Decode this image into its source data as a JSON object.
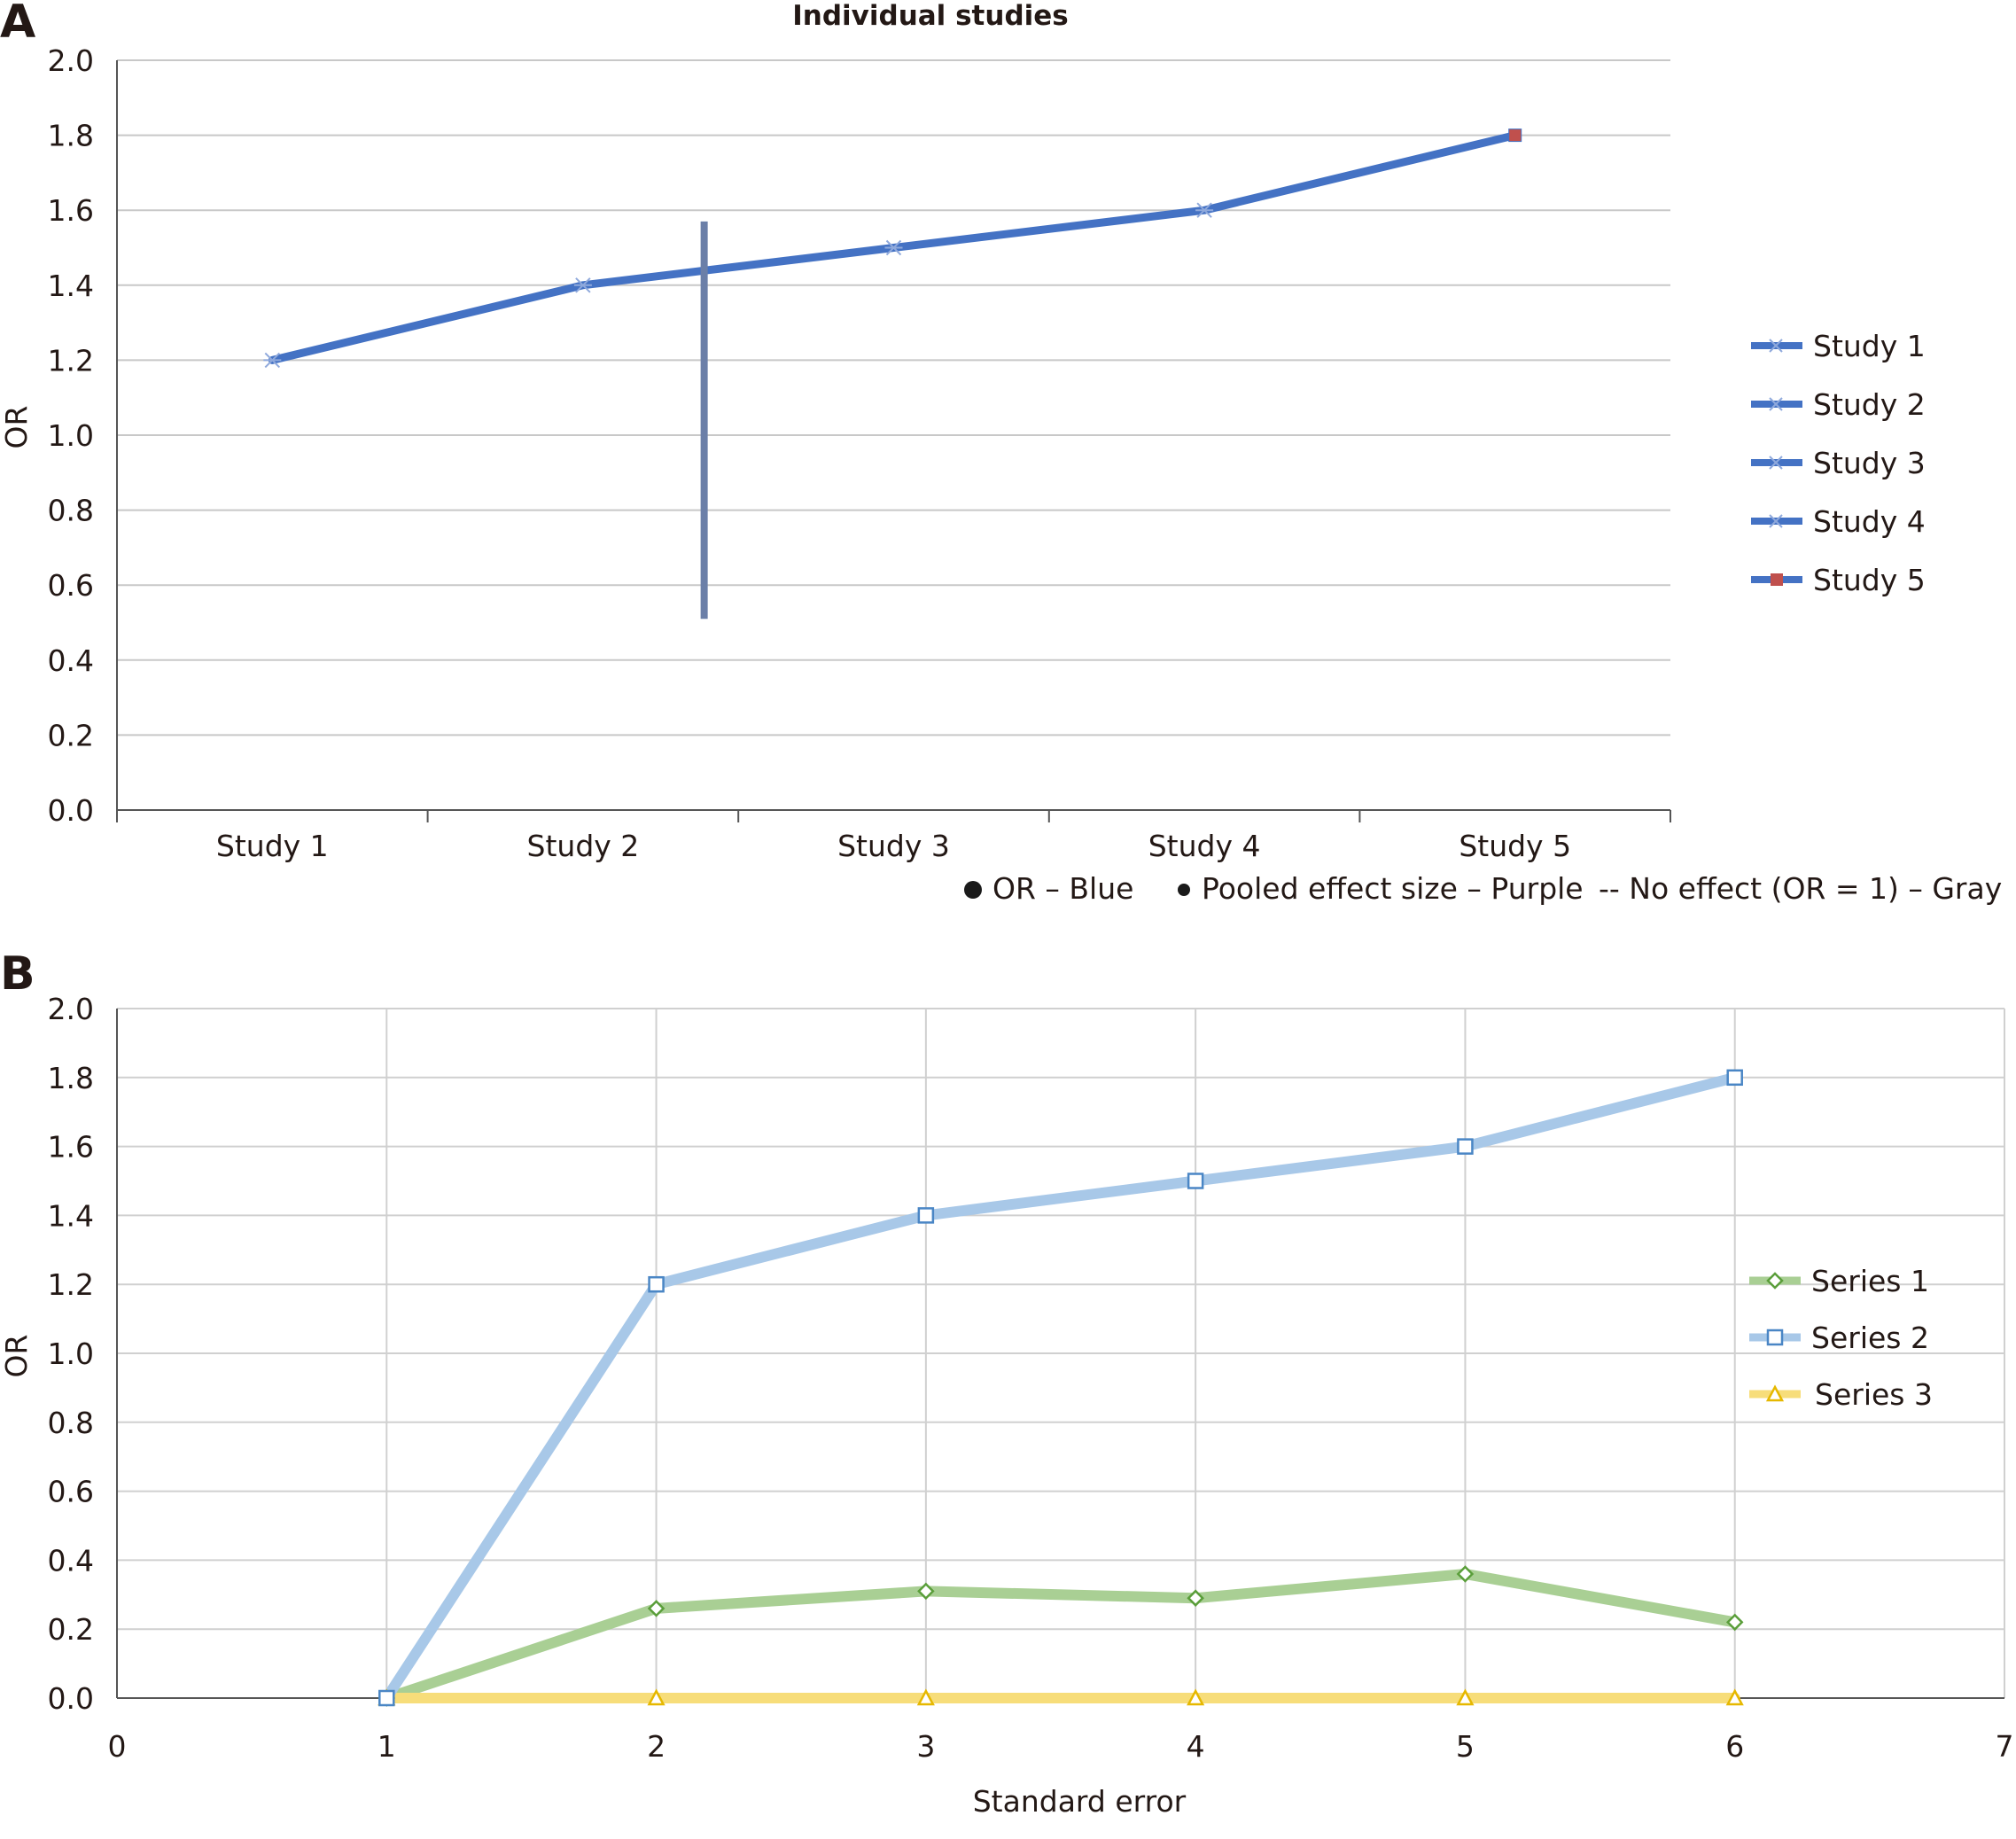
{
  "panels": [
    {
      "letter": "A",
      "chart_data": {
        "type": "line",
        "title": "Individual studies",
        "xlabel": "",
        "ylabel": "OR",
        "categories": [
          "Study 1",
          "Study 2",
          "Study 3",
          "Study 4",
          "Study 5"
        ],
        "values": [
          1.2,
          1.4,
          1.5,
          1.6,
          1.8
        ],
        "ylim": [
          0,
          2.0
        ],
        "yticks": [
          "0.0",
          "0.2",
          "0.4",
          "0.6",
          "0.8",
          "1.0",
          "1.2",
          "1.4",
          "1.6",
          "1.8",
          "2.0"
        ],
        "vertical_bar": {
          "x_between": [
            1,
            2
          ],
          "y_range": [
            0.51,
            1.57
          ]
        },
        "grid": "horizontal",
        "legend_position": "right",
        "legend": [
          "Study 1",
          "Study 2",
          "Study 3",
          "Study 4",
          "Study 5"
        ],
        "notes": [
          "OR – Blue",
          "Pooled effect size – Purple",
          "-- No effect (OR = 1) – Gray"
        ],
        "colors": {
          "line": "#4472c4",
          "marker": "#4472c4",
          "last_marker": "#c0504d",
          "vertical_bar": "#6b7fa8"
        }
      }
    },
    {
      "letter": "B",
      "chart_data": {
        "type": "line",
        "title": "",
        "xlabel": "Standard error",
        "ylabel": "OR",
        "xlim": [
          0,
          7
        ],
        "ylim": [
          0,
          2.0
        ],
        "xticks": [
          "0",
          "1",
          "2",
          "3",
          "4",
          "5",
          "6",
          "7"
        ],
        "yticks": [
          "0.0",
          "0.2",
          "0.4",
          "0.6",
          "0.8",
          "1.0",
          "1.2",
          "1.4",
          "1.6",
          "1.8",
          "2.0"
        ],
        "x": [
          1,
          2,
          3,
          4,
          5,
          6
        ],
        "series": [
          {
            "name": "Series 1",
            "values": [
              0.0,
              0.26,
              0.31,
              0.29,
              0.36,
              0.22
            ],
            "color": "#a9cf94",
            "marker_color": "#5a9e3a",
            "marker": "diamond"
          },
          {
            "name": "Series 2",
            "values": [
              0.0,
              1.2,
              1.4,
              1.5,
              1.6,
              1.8
            ],
            "color": "#a8c8e8",
            "marker_color": "#4a86c5",
            "marker": "square"
          },
          {
            "name": "Series 3",
            "values": [
              0.0,
              0.0,
              0.0,
              0.0,
              0.0,
              0.0
            ],
            "color": "#f7dd7a",
            "marker_color": "#e6b800",
            "marker": "triangle"
          }
        ],
        "grid": "both",
        "legend_position": "right"
      }
    }
  ]
}
